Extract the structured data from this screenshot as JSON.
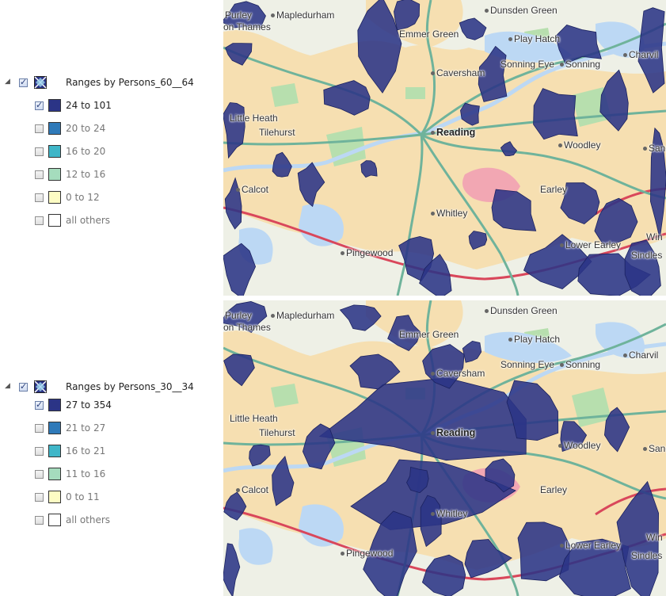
{
  "legend_top": {
    "title": "Ranges by Persons_60__64",
    "checked": true,
    "items": [
      {
        "label": "24 to 101",
        "color": "#2b3486",
        "checked": true
      },
      {
        "label": "20 to 24",
        "color": "#2f7ab9",
        "checked": false
      },
      {
        "label": "16 to 20",
        "color": "#3fb6c8",
        "checked": false
      },
      {
        "label": "12 to 16",
        "color": "#a5dcbd",
        "checked": false
      },
      {
        "label": "0 to 12",
        "color": "#fdfcc4",
        "checked": false
      },
      {
        "label": "all others",
        "color": "#ffffff",
        "checked": false
      }
    ]
  },
  "legend_bottom": {
    "title": "Ranges by Persons_30__34",
    "checked": true,
    "items": [
      {
        "label": "27 to 354",
        "color": "#2b3486",
        "checked": true
      },
      {
        "label": "21 to 27",
        "color": "#2f7ab9",
        "checked": false
      },
      {
        "label": "16 to 21",
        "color": "#3fb6c8",
        "checked": false
      },
      {
        "label": "11 to 16",
        "color": "#a5dcbd",
        "checked": false
      },
      {
        "label": "0 to 11",
        "color": "#fdfcc4",
        "checked": false
      },
      {
        "label": "all others",
        "color": "#ffffff",
        "checked": false
      }
    ]
  },
  "map_places": {
    "purley": "Purley",
    "on_thames": "on Thames",
    "mapledurham": "Mapledurham",
    "dunsden_green": "Dunsden Green",
    "emmer_green": "Emmer Green",
    "play_hatch": "Play Hatch",
    "charvil": "Charvil",
    "sonning_eye": "Sonning Eye",
    "sonning": "Sonning",
    "caversham": "Caversham",
    "little_heath": "Little Heath",
    "tilehurst": "Tilehurst",
    "reading": "Reading",
    "woodley": "Woodley",
    "sand": "Sand",
    "calcot": "Calcot",
    "earley": "Earley",
    "whitley": "Whitley",
    "pingewood": "Pingewood",
    "lower_earley": "Lower Earley",
    "win": "Win",
    "sindles": "Sindles"
  },
  "map_colors": {
    "background": "#eef0e6",
    "urban": "#f6dfb1",
    "water": "#bcd8f4",
    "park": "#b7dfae",
    "motorway": "#d9475b",
    "main_road": "#6fb39b",
    "choropleth": "#2b3486"
  },
  "icons": {
    "expander": "triangle-expand-icon",
    "layer": "layer-symbol-icon"
  }
}
